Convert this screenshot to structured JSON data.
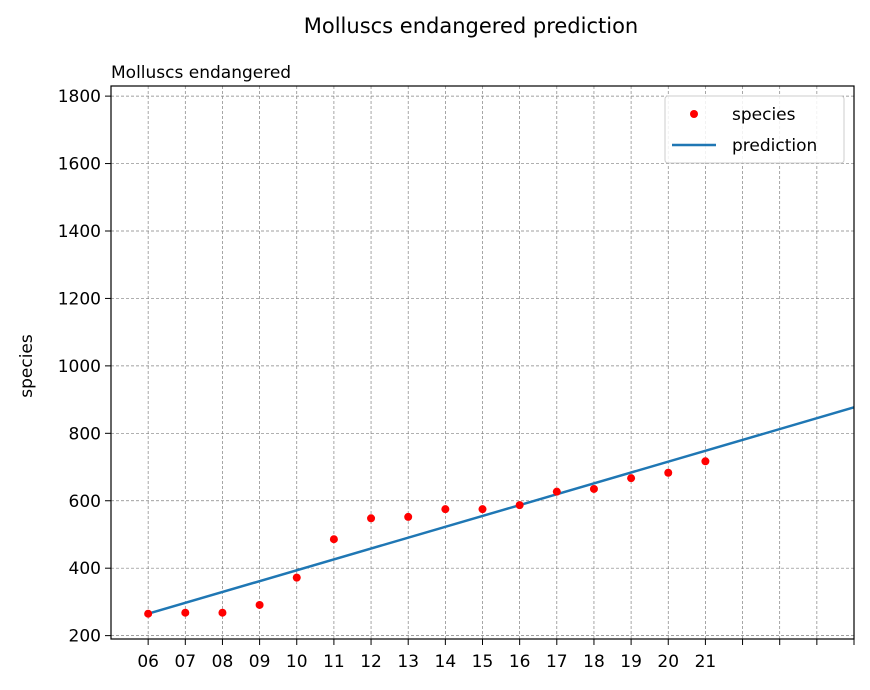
{
  "chart_data": {
    "type": "scatter",
    "suptitle": "Molluscs endangered prediction",
    "title": "Molluscs endangered",
    "xlabel": "",
    "ylabel": "species",
    "x_tick_labels": [
      "06",
      "07",
      "08",
      "09",
      "10",
      "11",
      "12",
      "13",
      "14",
      "15",
      "16",
      "17",
      "18",
      "19",
      "20",
      "21",
      "",
      "",
      "",
      ""
    ],
    "xlim": [
      -1,
      19
    ],
    "ylim": [
      190,
      1830
    ],
    "y_ticks": [
      200,
      400,
      600,
      800,
      1000,
      1200,
      1400,
      1600,
      1800
    ],
    "grid": true,
    "legend_position": "top-right",
    "series": [
      {
        "name": "species",
        "kind": "points",
        "color": "#ff0000",
        "x": [
          0,
          1,
          2,
          3,
          4,
          5,
          6,
          7,
          8,
          9,
          10,
          11,
          12,
          13,
          14,
          15
        ],
        "y": [
          265,
          268,
          268,
          291,
          372,
          486,
          548,
          552,
          575,
          575,
          587,
          627,
          635,
          667,
          683,
          717
        ]
      },
      {
        "name": "prediction",
        "kind": "line",
        "color": "#1f77b4",
        "x": [
          0,
          19
        ],
        "y": [
          265,
          877
        ]
      }
    ]
  }
}
